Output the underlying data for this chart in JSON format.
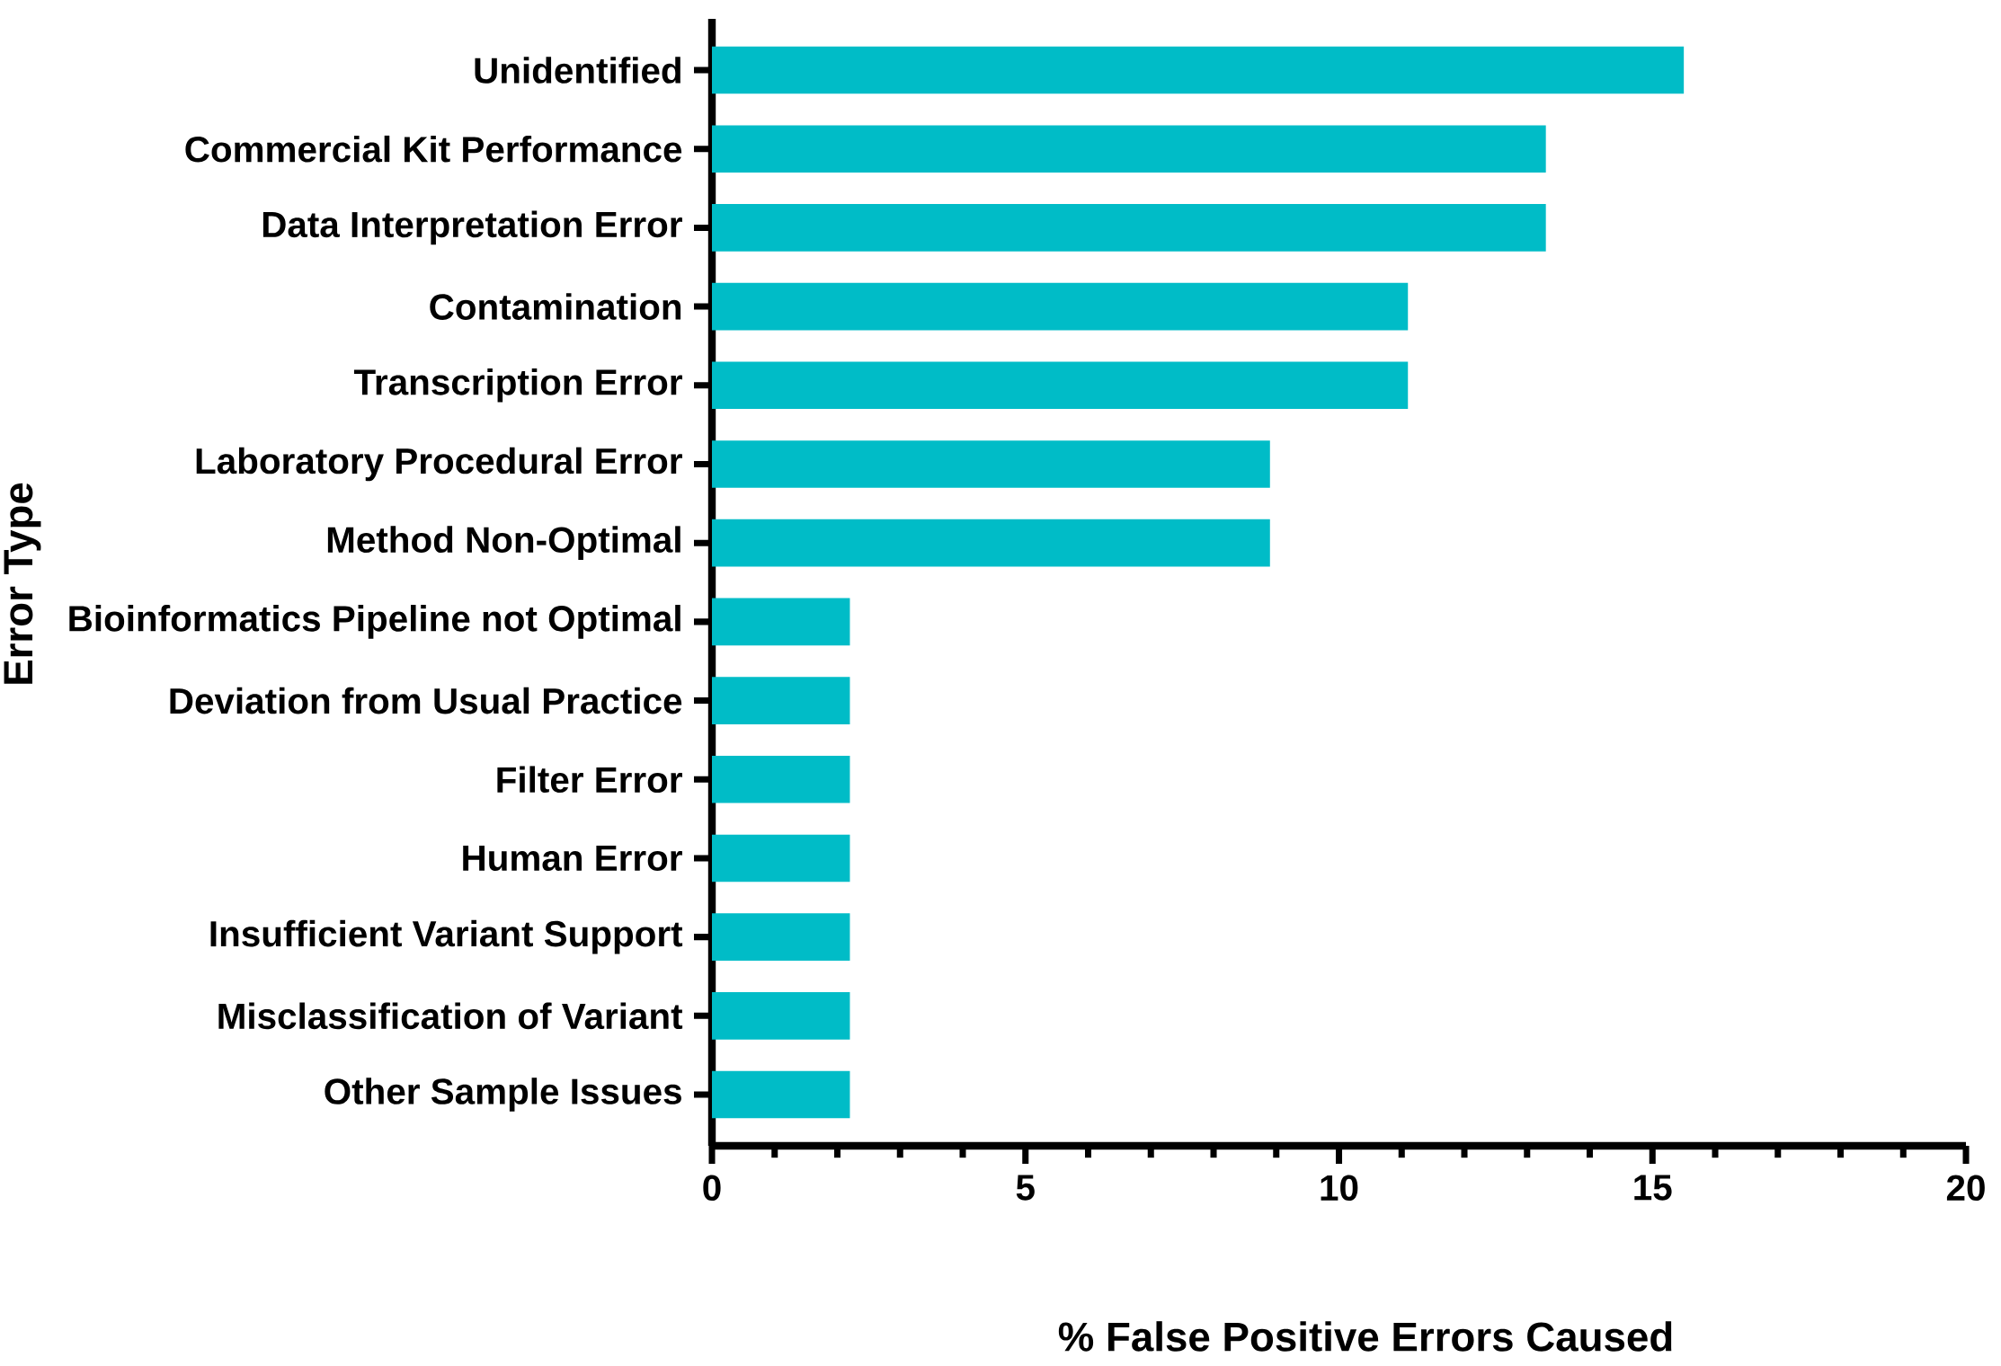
{
  "chart_data": {
    "type": "bar",
    "orientation": "horizontal",
    "xlabel": "% False Positive Errors Caused",
    "ylabel": "Error Type",
    "categories": [
      "Unidentified",
      "Commercial Kit Performance",
      "Data Interpretation Error",
      "Contamination",
      "Transcription Error",
      "Laboratory Procedural Error",
      "Method Non-Optimal",
      "Bioinformatics Pipeline not Optimal",
      "Deviation from Usual Practice",
      "Filter Error",
      "Human Error",
      "Insufficient Variant Support",
      "Misclassification of Variant",
      "Other Sample Issues"
    ],
    "values": [
      15.5,
      13.3,
      13.3,
      11.1,
      11.1,
      8.9,
      8.9,
      2.2,
      2.2,
      2.2,
      2.2,
      2.2,
      2.2,
      2.2
    ],
    "color": "#00bcc7",
    "xlim": [
      0,
      20
    ],
    "xticks": [
      0,
      {
        "value": 1,
        "label": null
      },
      {
        "value": 2,
        "label": null
      },
      {
        "value": 3,
        "label": null
      },
      {
        "value": 4,
        "label": null
      },
      5,
      {
        "value": 6,
        "label": null
      },
      {
        "value": 7,
        "label": null
      },
      {
        "value": 8,
        "label": null
      },
      {
        "value": 9,
        "label": null
      },
      10,
      {
        "value": 11,
        "label": null
      },
      {
        "value": 12,
        "label": null
      },
      {
        "value": 13,
        "label": null
      },
      {
        "value": 14,
        "label": null
      },
      15,
      {
        "value": 16,
        "label": null
      },
      {
        "value": 17,
        "label": null
      },
      {
        "value": 18,
        "label": null
      },
      {
        "value": 19,
        "label": null
      },
      20
    ]
  }
}
